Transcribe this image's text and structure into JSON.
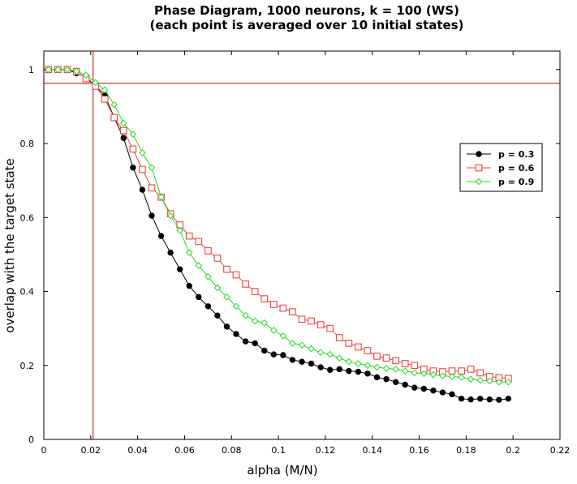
{
  "chart_data": {
    "type": "line",
    "title": "Phase Diagram, 1000 neurons, k = 100 (WS)",
    "subtitle": "(each point is averaged over 10 initial states)",
    "xlabel": "alpha (M/N)",
    "ylabel": "overlap with the target state",
    "xlim": [
      0,
      0.22
    ],
    "ylim": [
      0,
      1.05
    ],
    "x_ticks": [
      "0",
      "0.02",
      "0.04",
      "0.06",
      "0.08",
      "0.1",
      "0.12",
      "0.14",
      "0.16",
      "0.18",
      "0.2",
      "0.22"
    ],
    "y_ticks": [
      "0",
      "0.2",
      "0.4",
      "0.6",
      "0.8",
      "1"
    ],
    "grid": false,
    "legend_position": "right",
    "reference_lines": {
      "vertical_x": 0.021,
      "horizontal_y": 0.963,
      "color": "#cc0000"
    },
    "x": [
      0.002,
      0.006,
      0.01,
      0.014,
      0.018,
      0.022,
      0.026,
      0.03,
      0.034,
      0.038,
      0.042,
      0.046,
      0.05,
      0.054,
      0.058,
      0.062,
      0.066,
      0.07,
      0.074,
      0.078,
      0.082,
      0.086,
      0.09,
      0.094,
      0.098,
      0.102,
      0.106,
      0.11,
      0.114,
      0.118,
      0.122,
      0.126,
      0.13,
      0.134,
      0.138,
      0.142,
      0.146,
      0.15,
      0.154,
      0.158,
      0.162,
      0.166,
      0.17,
      0.174,
      0.178,
      0.182,
      0.186,
      0.19,
      0.194,
      0.198
    ],
    "series": [
      {
        "name": "p = 0.3",
        "color": "#000000",
        "marker": "filled-circle",
        "values": [
          1.0,
          1.0,
          1.0,
          0.99,
          0.98,
          0.955,
          0.93,
          0.87,
          0.815,
          0.735,
          0.675,
          0.605,
          0.55,
          0.505,
          0.46,
          0.415,
          0.385,
          0.36,
          0.335,
          0.305,
          0.285,
          0.265,
          0.26,
          0.24,
          0.23,
          0.228,
          0.215,
          0.21,
          0.205,
          0.195,
          0.188,
          0.19,
          0.185,
          0.183,
          0.178,
          0.168,
          0.163,
          0.155,
          0.148,
          0.14,
          0.137,
          0.132,
          0.127,
          0.122,
          0.11,
          0.108,
          0.11,
          0.108,
          0.107,
          0.11
        ]
      },
      {
        "name": "p = 0.6",
        "color": "#ee4444",
        "marker": "open-square",
        "values": [
          1.0,
          1.0,
          1.0,
          0.995,
          0.975,
          0.955,
          0.92,
          0.87,
          0.835,
          0.785,
          0.73,
          0.68,
          0.655,
          0.61,
          0.58,
          0.55,
          0.535,
          0.51,
          0.49,
          0.46,
          0.445,
          0.42,
          0.4,
          0.38,
          0.365,
          0.355,
          0.345,
          0.325,
          0.32,
          0.31,
          0.3,
          0.275,
          0.26,
          0.25,
          0.24,
          0.225,
          0.22,
          0.213,
          0.205,
          0.2,
          0.19,
          0.185,
          0.183,
          0.185,
          0.185,
          0.19,
          0.18,
          0.17,
          0.167,
          0.165
        ]
      },
      {
        "name": "p = 0.9",
        "color": "#22dd22",
        "marker": "open-diamond",
        "values": [
          1.0,
          1.0,
          1.0,
          0.995,
          0.985,
          0.965,
          0.945,
          0.905,
          0.855,
          0.825,
          0.775,
          0.735,
          0.655,
          0.605,
          0.565,
          0.505,
          0.47,
          0.44,
          0.41,
          0.385,
          0.36,
          0.335,
          0.32,
          0.315,
          0.295,
          0.28,
          0.26,
          0.255,
          0.245,
          0.235,
          0.23,
          0.22,
          0.21,
          0.205,
          0.2,
          0.195,
          0.192,
          0.19,
          0.185,
          0.18,
          0.178,
          0.175,
          0.172,
          0.17,
          0.168,
          0.163,
          0.16,
          0.158,
          0.155,
          0.155
        ]
      }
    ]
  }
}
